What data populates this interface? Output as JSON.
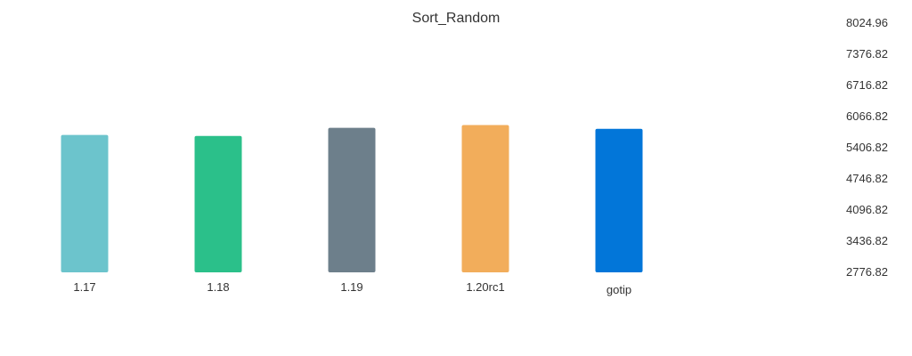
{
  "chart_data": {
    "type": "bar",
    "title": "Sort_Random",
    "xlabel": "",
    "ylabel": "",
    "categories": [
      "1.17",
      "1.18",
      "1.19",
      "1.20rc1",
      "gotip"
    ],
    "values": [
      5670,
      5650,
      5820,
      5880,
      5800
    ],
    "colors": [
      "#6cc4cc",
      "#2bc08a",
      "#6d7f8b",
      "#f2ad5b",
      "#0276d9"
    ],
    "y_ticks": [
      "8024.96",
      "7376.82",
      "6716.82",
      "6066.82",
      "5406.82",
      "4746.82",
      "4096.82",
      "3436.82",
      "2776.82"
    ],
    "ylim": [
      2776.82,
      8024.96
    ],
    "grid": false,
    "legend": "none"
  }
}
